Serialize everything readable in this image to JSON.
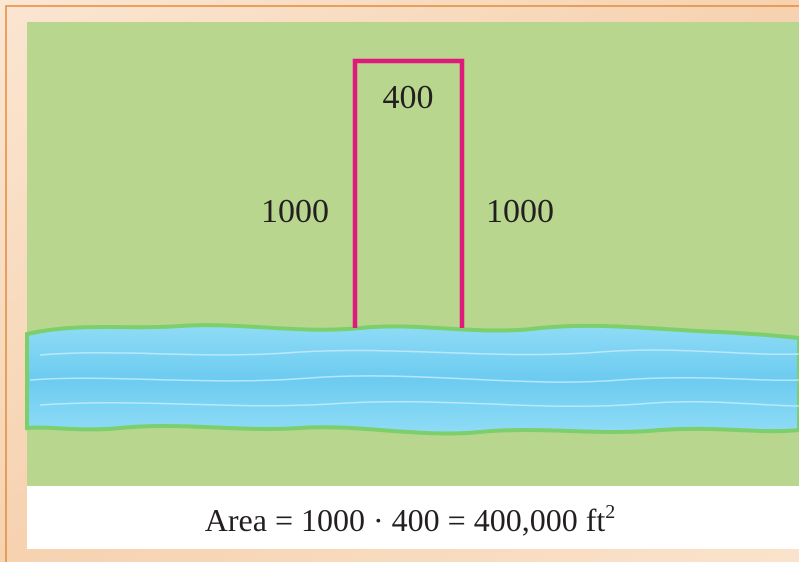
{
  "labels": {
    "top": "400",
    "left": "1000",
    "right": "1000"
  },
  "caption": {
    "text": "Area = 1000 · 400 = 400,000 ft",
    "superscript": "2"
  }
}
